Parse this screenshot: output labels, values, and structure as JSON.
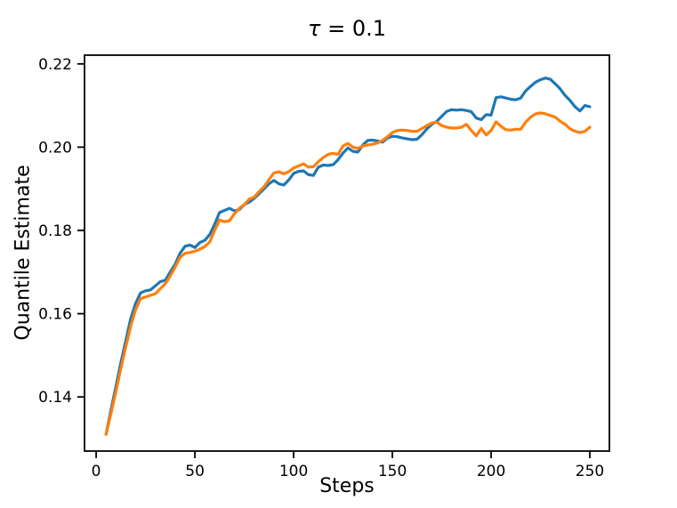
{
  "chart_data": {
    "type": "line",
    "title": "τ = 0.1",
    "title_symbol": "τ",
    "title_rest": " = 0.1",
    "xlabel": "Steps",
    "ylabel": "Quantile Estimate",
    "legend_position": "none",
    "grid": false,
    "xlim": [
      -5.9,
      259.9
    ],
    "ylim": [
      0.127,
      0.2221
    ],
    "xticks": [
      0,
      50,
      100,
      150,
      200,
      250
    ],
    "yticks": [
      0.14,
      0.16,
      0.18,
      0.2,
      0.22
    ],
    "x": [
      5,
      7.5,
      10,
      12.5,
      15,
      17.5,
      20,
      22.5,
      25,
      27.5,
      30,
      32.5,
      35,
      37.5,
      40,
      42.5,
      45,
      47.5,
      50,
      52.5,
      55,
      57.5,
      60,
      62.5,
      65,
      67.5,
      70,
      72.5,
      75,
      77.5,
      80,
      82.5,
      85,
      87.5,
      90,
      92.5,
      95,
      97.5,
      100,
      102.5,
      105,
      107.5,
      110,
      112.5,
      115,
      117.5,
      120,
      122.5,
      125,
      127.5,
      130,
      132.5,
      135,
      137.5,
      140,
      142.5,
      145,
      147.5,
      150,
      152.5,
      155,
      157.5,
      160,
      162.5,
      165,
      167.5,
      170,
      172.5,
      175,
      177.5,
      180,
      182.5,
      185,
      187.5,
      190,
      192.5,
      195,
      197.5,
      200,
      202.5,
      205,
      207.5,
      210,
      212.5,
      215,
      217.5,
      220,
      222.5,
      225,
      227.5,
      230,
      232.5,
      235,
      237.5,
      240,
      242.5,
      245,
      247.5,
      250
    ],
    "series": [
      {
        "name": "blue",
        "color": "#1f77b4",
        "values": [
          0.131,
          0.1368,
          0.1425,
          0.1482,
          0.1535,
          0.1588,
          0.1625,
          0.165,
          0.1655,
          0.1657,
          0.1667,
          0.1677,
          0.168,
          0.17,
          0.1719,
          0.1745,
          0.1762,
          0.1765,
          0.1759,
          0.1771,
          0.1776,
          0.179,
          0.1815,
          0.1843,
          0.1848,
          0.1853,
          0.1847,
          0.185,
          0.1862,
          0.1868,
          0.1877,
          0.1888,
          0.19,
          0.1912,
          0.192,
          0.1912,
          0.1909,
          0.1921,
          0.1937,
          0.1942,
          0.1943,
          0.1934,
          0.1932,
          0.1952,
          0.1957,
          0.1956,
          0.1958,
          0.197,
          0.1986,
          0.1998,
          0.199,
          0.1988,
          0.2005,
          0.2016,
          0.2017,
          0.2015,
          0.2012,
          0.2022,
          0.2026,
          0.2025,
          0.2022,
          0.202,
          0.2018,
          0.2019,
          0.203,
          0.2044,
          0.2055,
          0.2062,
          0.2074,
          0.2086,
          0.209,
          0.2089,
          0.209,
          0.2088,
          0.2085,
          0.207,
          0.2066,
          0.2078,
          0.2077,
          0.2119,
          0.2121,
          0.2118,
          0.2115,
          0.2114,
          0.2118,
          0.2135,
          0.2146,
          0.2156,
          0.2162,
          0.2166,
          0.2163,
          0.2152,
          0.214,
          0.2124,
          0.2112,
          0.2097,
          0.2087,
          0.21,
          0.2097
        ]
      },
      {
        "name": "orange",
        "color": "#ff7f0e",
        "values": [
          0.131,
          0.136,
          0.1413,
          0.1468,
          0.152,
          0.157,
          0.161,
          0.1636,
          0.164,
          0.1644,
          0.1648,
          0.166,
          0.1672,
          0.169,
          0.1712,
          0.1735,
          0.1745,
          0.1747,
          0.175,
          0.1755,
          0.1761,
          0.1772,
          0.18,
          0.1825,
          0.1821,
          0.1823,
          0.184,
          0.1853,
          0.1862,
          0.1875,
          0.188,
          0.1893,
          0.1905,
          0.1922,
          0.1938,
          0.1941,
          0.1936,
          0.1941,
          0.195,
          0.1955,
          0.196,
          0.1952,
          0.1953,
          0.1965,
          0.1975,
          0.1983,
          0.1985,
          0.1983,
          0.2003,
          0.2009,
          0.2,
          0.1997,
          0.2003,
          0.2005,
          0.2007,
          0.201,
          0.2016,
          0.2025,
          0.2035,
          0.204,
          0.2041,
          0.204,
          0.2038,
          0.2038,
          0.2045,
          0.2052,
          0.2058,
          0.206,
          0.2052,
          0.2048,
          0.2046,
          0.2046,
          0.2048,
          0.2055,
          0.204,
          0.2027,
          0.2045,
          0.2029,
          0.204,
          0.2061,
          0.205,
          0.2042,
          0.2041,
          0.2043,
          0.2043,
          0.206,
          0.2072,
          0.208,
          0.2082,
          0.208,
          0.2076,
          0.2072,
          0.2062,
          0.2055,
          0.2044,
          0.2038,
          0.2035,
          0.2038,
          0.2048
        ]
      }
    ]
  }
}
